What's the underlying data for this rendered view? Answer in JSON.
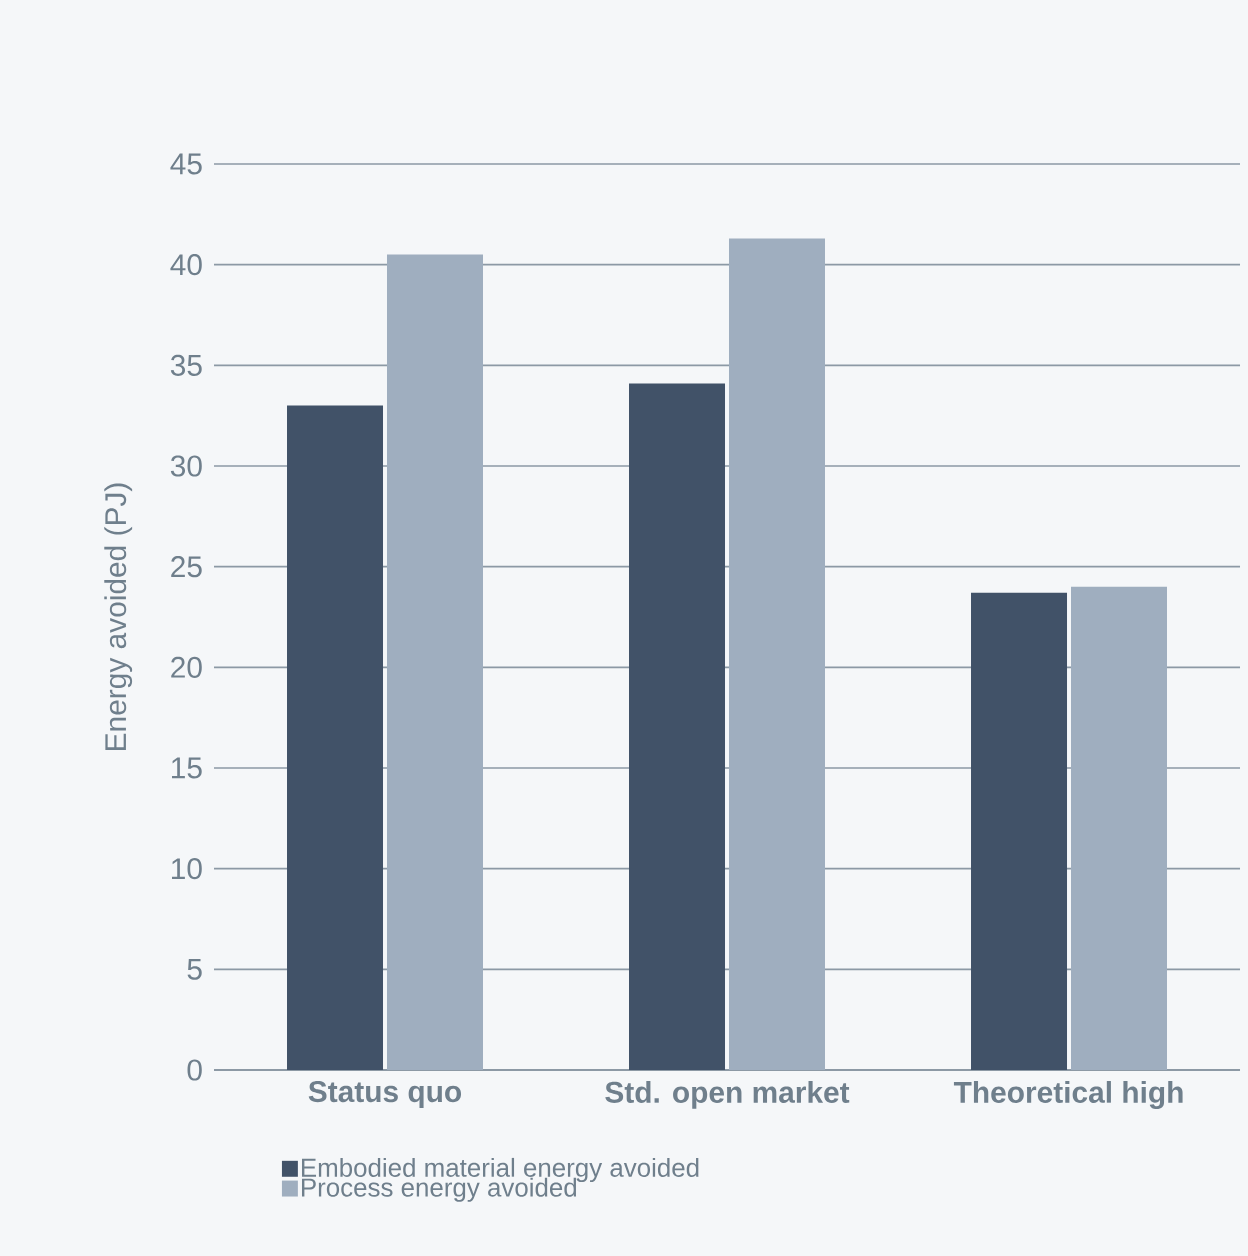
{
  "chart_data": {
    "type": "bar",
    "ylabel": "Energy avoided (PJ)",
    "categories": [
      "Status quo",
      "Std. open market",
      "Theoretical high"
    ],
    "series": [
      {
        "name": "Embodied material energy avoided",
        "color": "#415268",
        "values": [
          33.0,
          34.1,
          23.7
        ]
      },
      {
        "name": "Process energy avoided",
        "color": "#9faebf",
        "values": [
          40.5,
          41.3,
          24.0
        ]
      }
    ],
    "ylim": [
      0,
      45
    ],
    "yticks": [
      0,
      5,
      10,
      15,
      20,
      25,
      30,
      35,
      40,
      45
    ],
    "grid": "y",
    "legend": "bottom"
  }
}
